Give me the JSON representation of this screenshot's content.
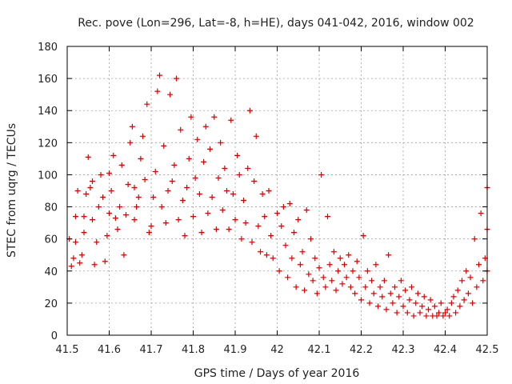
{
  "chart_data": {
    "type": "scatter",
    "title": "Rec. pove (Lon=296, Lat=-8, h=HE), days 041-042, 2016, window 002",
    "xlabel": "GPS time / Days of year 2016",
    "ylabel": "STEC from uqrg / TECUs",
    "xlim": [
      41.5,
      42.5
    ],
    "ylim": [
      0,
      180
    ],
    "xticks": [
      41.5,
      41.6,
      41.7,
      41.8,
      41.9,
      42.0,
      42.1,
      42.2,
      42.3,
      42.4,
      42.5
    ],
    "xtick_labels": [
      "41.5",
      "41.6",
      "41.7",
      "41.8",
      "41.9",
      "42",
      "42.1",
      "42.2",
      "42.3",
      "42.4",
      "42.5"
    ],
    "yticks": [
      0,
      20,
      40,
      60,
      80,
      100,
      120,
      140,
      160,
      180
    ],
    "ytick_labels": [
      "0",
      "20",
      "40",
      "60",
      "80",
      "100",
      "120",
      "140",
      "160",
      "180"
    ],
    "grid": true,
    "marker": "+",
    "marker_color": "#dd0000",
    "series": [
      {
        "name": "STEC",
        "points": [
          [
            41.505,
            60
          ],
          [
            41.51,
            43
          ],
          [
            41.515,
            48
          ],
          [
            41.52,
            58
          ],
          [
            41.52,
            74
          ],
          [
            41.525,
            90
          ],
          [
            41.53,
            45
          ],
          [
            41.535,
            50
          ],
          [
            41.54,
            64
          ],
          [
            41.54,
            74
          ],
          [
            41.545,
            88
          ],
          [
            41.55,
            111
          ],
          [
            41.555,
            92
          ],
          [
            41.56,
            72
          ],
          [
            41.56,
            96
          ],
          [
            41.565,
            44
          ],
          [
            41.57,
            58
          ],
          [
            41.575,
            80
          ],
          [
            41.58,
            100
          ],
          [
            41.585,
            86
          ],
          [
            41.59,
            46
          ],
          [
            41.595,
            62
          ],
          [
            41.6,
            76
          ],
          [
            41.6,
            101
          ],
          [
            41.605,
            90
          ],
          [
            41.61,
            112
          ],
          [
            41.615,
            73
          ],
          [
            41.62,
            66
          ],
          [
            41.625,
            80
          ],
          [
            41.63,
            106
          ],
          [
            41.635,
            50
          ],
          [
            41.64,
            75
          ],
          [
            41.645,
            94
          ],
          [
            41.65,
            120
          ],
          [
            41.655,
            130
          ],
          [
            41.66,
            92
          ],
          [
            41.66,
            72
          ],
          [
            41.665,
            80
          ],
          [
            41.67,
            86
          ],
          [
            41.675,
            110
          ],
          [
            41.68,
            124
          ],
          [
            41.685,
            97
          ],
          [
            41.69,
            144
          ],
          [
            41.695,
            64
          ],
          [
            41.7,
            68
          ],
          [
            41.705,
            86
          ],
          [
            41.71,
            102
          ],
          [
            41.715,
            152
          ],
          [
            41.72,
            162
          ],
          [
            41.725,
            80
          ],
          [
            41.73,
            118
          ],
          [
            41.735,
            70
          ],
          [
            41.74,
            90
          ],
          [
            41.745,
            150
          ],
          [
            41.75,
            96
          ],
          [
            41.755,
            106
          ],
          [
            41.76,
            160
          ],
          [
            41.765,
            72
          ],
          [
            41.77,
            128
          ],
          [
            41.775,
            84
          ],
          [
            41.78,
            62
          ],
          [
            41.785,
            92
          ],
          [
            41.79,
            110
          ],
          [
            41.795,
            136
          ],
          [
            41.8,
            74
          ],
          [
            41.805,
            98
          ],
          [
            41.81,
            122
          ],
          [
            41.815,
            88
          ],
          [
            41.82,
            64
          ],
          [
            41.825,
            108
          ],
          [
            41.83,
            130
          ],
          [
            41.835,
            76
          ],
          [
            41.84,
            116
          ],
          [
            41.845,
            86
          ],
          [
            41.85,
            136
          ],
          [
            41.855,
            66
          ],
          [
            41.86,
            98
          ],
          [
            41.865,
            120
          ],
          [
            41.87,
            78
          ],
          [
            41.875,
            104
          ],
          [
            41.88,
            90
          ],
          [
            41.885,
            66
          ],
          [
            41.89,
            134
          ],
          [
            41.895,
            88
          ],
          [
            41.9,
            72
          ],
          [
            41.905,
            112
          ],
          [
            41.91,
            100
          ],
          [
            41.915,
            60
          ],
          [
            41.92,
            84
          ],
          [
            41.925,
            70
          ],
          [
            41.93,
            104
          ],
          [
            41.935,
            140
          ],
          [
            41.94,
            58
          ],
          [
            41.945,
            96
          ],
          [
            41.95,
            124
          ],
          [
            41.955,
            68
          ],
          [
            41.96,
            52
          ],
          [
            41.965,
            88
          ],
          [
            41.97,
            74
          ],
          [
            41.975,
            50
          ],
          [
            41.98,
            90
          ],
          [
            41.985,
            62
          ],
          [
            41.99,
            48
          ],
          [
            42.0,
            76
          ],
          [
            42.005,
            40
          ],
          [
            42.01,
            68
          ],
          [
            42.015,
            80
          ],
          [
            42.02,
            56
          ],
          [
            42.025,
            36
          ],
          [
            42.03,
            82
          ],
          [
            42.035,
            48
          ],
          [
            42.04,
            64
          ],
          [
            42.045,
            30
          ],
          [
            42.05,
            72
          ],
          [
            42.055,
            44
          ],
          [
            42.06,
            52
          ],
          [
            42.065,
            28
          ],
          [
            42.07,
            78
          ],
          [
            42.075,
            38
          ],
          [
            42.08,
            60
          ],
          [
            42.085,
            34
          ],
          [
            42.09,
            48
          ],
          [
            42.095,
            26
          ],
          [
            42.1,
            42
          ],
          [
            42.105,
            100
          ],
          [
            42.11,
            36
          ],
          [
            42.115,
            30
          ],
          [
            42.12,
            74
          ],
          [
            42.125,
            44
          ],
          [
            42.13,
            34
          ],
          [
            42.135,
            52
          ],
          [
            42.14,
            28
          ],
          [
            42.145,
            40
          ],
          [
            42.15,
            48
          ],
          [
            42.155,
            32
          ],
          [
            42.16,
            44
          ],
          [
            42.165,
            36
          ],
          [
            42.17,
            50
          ],
          [
            42.175,
            30
          ],
          [
            42.18,
            40
          ],
          [
            42.185,
            26
          ],
          [
            42.19,
            46
          ],
          [
            42.195,
            36
          ],
          [
            42.2,
            22
          ],
          [
            42.205,
            62
          ],
          [
            42.21,
            30
          ],
          [
            42.215,
            40
          ],
          [
            42.22,
            20
          ],
          [
            42.225,
            34
          ],
          [
            42.23,
            26
          ],
          [
            42.235,
            44
          ],
          [
            42.24,
            18
          ],
          [
            42.245,
            30
          ],
          [
            42.25,
            24
          ],
          [
            42.255,
            34
          ],
          [
            42.26,
            16
          ],
          [
            42.265,
            50
          ],
          [
            42.27,
            26
          ],
          [
            42.275,
            20
          ],
          [
            42.28,
            30
          ],
          [
            42.285,
            14
          ],
          [
            42.29,
            24
          ],
          [
            42.295,
            34
          ],
          [
            42.3,
            18
          ],
          [
            42.305,
            28
          ],
          [
            42.31,
            14
          ],
          [
            42.315,
            22
          ],
          [
            42.32,
            30
          ],
          [
            42.325,
            12
          ],
          [
            42.33,
            20
          ],
          [
            42.335,
            26
          ],
          [
            42.34,
            14
          ],
          [
            42.345,
            18
          ],
          [
            42.35,
            24
          ],
          [
            42.355,
            12
          ],
          [
            42.36,
            16
          ],
          [
            42.365,
            22
          ],
          [
            42.37,
            12
          ],
          [
            42.375,
            18
          ],
          [
            42.38,
            12
          ],
          [
            42.385,
            14
          ],
          [
            42.39,
            20
          ],
          [
            42.395,
            12
          ],
          [
            42.4,
            14
          ],
          [
            42.405,
            16
          ],
          [
            42.41,
            12
          ],
          [
            42.415,
            20
          ],
          [
            42.42,
            24
          ],
          [
            42.425,
            14
          ],
          [
            42.43,
            28
          ],
          [
            42.435,
            18
          ],
          [
            42.44,
            34
          ],
          [
            42.445,
            22
          ],
          [
            42.45,
            40
          ],
          [
            42.455,
            26
          ],
          [
            42.46,
            36
          ],
          [
            42.465,
            20
          ],
          [
            42.47,
            60
          ],
          [
            42.475,
            30
          ],
          [
            42.48,
            44
          ],
          [
            42.485,
            76
          ],
          [
            42.49,
            34
          ],
          [
            42.495,
            48
          ],
          [
            42.5,
            66
          ],
          [
            42.5,
            92
          ],
          [
            42.5,
            40
          ]
        ]
      }
    ]
  }
}
